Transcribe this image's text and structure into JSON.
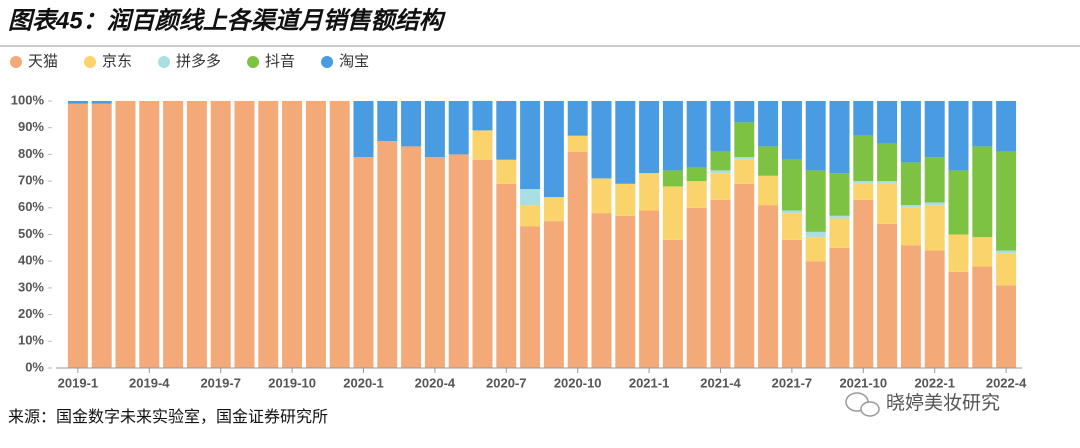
{
  "chart_data": {
    "type": "stacked_bar",
    "title": "图表45：润百颜线上各渠道月销售额结构",
    "source": "来源：国金数字未来实验室，国金证券研究所",
    "watermark": "晓婷美妆研究",
    "categories": [
      "2019-1",
      null,
      null,
      "2019-4",
      null,
      null,
      "2019-7",
      null,
      null,
      "2019-10",
      null,
      null,
      "2020-1",
      null,
      null,
      "2020-4",
      null,
      null,
      "2020-7",
      null,
      null,
      "2020-10",
      null,
      null,
      "2021-1",
      null,
      null,
      "2021-4",
      null,
      null,
      "2021-7",
      null,
      null,
      "2021-10",
      null,
      null,
      "2022-1",
      null,
      null,
      "2022-4"
    ],
    "series": [
      {
        "name": "天猫",
        "color": "#f4a979",
        "values": [
          99,
          99,
          100,
          100,
          100,
          100,
          100,
          100,
          100,
          100,
          100,
          100,
          79,
          85,
          83,
          79,
          80,
          78,
          69,
          53,
          55,
          81,
          58,
          57,
          59,
          48,
          60,
          63,
          69,
          61,
          48,
          40,
          45,
          63,
          54,
          46,
          44,
          36,
          38,
          31
        ]
      },
      {
        "name": "京东",
        "color": "#fbd36b",
        "values": [
          0,
          0,
          0,
          0,
          0,
          0,
          0,
          0,
          0,
          0,
          0,
          0,
          0,
          0,
          0,
          0,
          0,
          11,
          9,
          8,
          9,
          6,
          13,
          12,
          14,
          20,
          10,
          10,
          9,
          11,
          10,
          9,
          11,
          6,
          15,
          14,
          17,
          14,
          11,
          12
        ]
      },
      {
        "name": "拼多多",
        "color": "#a9dfe2",
        "values": [
          0,
          0,
          0,
          0,
          0,
          0,
          0,
          0,
          0,
          0,
          0,
          0,
          0,
          0,
          0,
          0,
          0,
          0,
          0,
          6,
          0,
          0,
          0,
          0,
          0,
          0,
          0,
          1,
          1,
          0,
          1,
          2,
          1,
          1,
          1,
          1,
          1,
          0,
          0,
          1
        ]
      },
      {
        "name": "抖音",
        "color": "#7dc243",
        "values": [
          0,
          0,
          0,
          0,
          0,
          0,
          0,
          0,
          0,
          0,
          0,
          0,
          0,
          0,
          0,
          0,
          0,
          0,
          0,
          0,
          0,
          0,
          0,
          0,
          0,
          6,
          5,
          7,
          13,
          11,
          19,
          23,
          16,
          17,
          14,
          16,
          17,
          24,
          34,
          37
        ]
      },
      {
        "name": "淘宝",
        "color": "#4a9ce2",
        "values": [
          1,
          1,
          0,
          0,
          0,
          0,
          0,
          0,
          0,
          0,
          0,
          0,
          21,
          15,
          17,
          21,
          20,
          11,
          22,
          33,
          36,
          13,
          29,
          31,
          27,
          26,
          25,
          19,
          8,
          17,
          22,
          26,
          27,
          13,
          16,
          23,
          21,
          26,
          17,
          19
        ]
      }
    ],
    "ylim": [
      0,
      100
    ],
    "yticks": [
      {
        "value": 0,
        "label": "0%"
      },
      {
        "value": 10,
        "label": "10%"
      },
      {
        "value": 20,
        "label": "20%"
      },
      {
        "value": 30,
        "label": "30%"
      },
      {
        "value": 40,
        "label": "40%"
      },
      {
        "value": 50,
        "label": "50%"
      },
      {
        "value": 60,
        "label": "60%"
      },
      {
        "value": 70,
        "label": "70%"
      },
      {
        "value": 80,
        "label": "80%"
      },
      {
        "value": 90,
        "label": "90%"
      },
      {
        "value": 100,
        "label": "100%"
      }
    ]
  }
}
